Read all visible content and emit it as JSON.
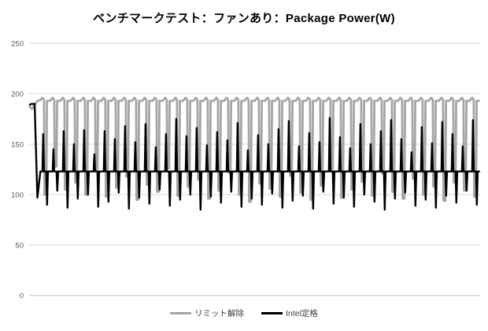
{
  "colors": {
    "background": "#ffffff",
    "gridline": "#d9d9d9",
    "zero_axis_line": "#bfbfbf",
    "tick_label": "#595959",
    "title_text": "#000000",
    "legend_text": "#404040",
    "series_gray": "#a5a5a5",
    "series_black": "#000000"
  },
  "chart_data": {
    "type": "line",
    "title": "ベンチマークテスト：ファンあり：Package Power(W)",
    "xlabel": "",
    "ylabel": "",
    "ylim": [
      0,
      250
    ],
    "yticks": [
      0,
      50,
      100,
      150,
      200,
      250
    ],
    "x_tick_labels": "none",
    "grid": true,
    "legend_position": "bottom-center",
    "units": "W",
    "series": [
      {
        "name": "リミット解除",
        "color": "#a5a5a5",
        "shape": "plateau ~194 W with one sharp dip per cycle",
        "intro_values": [
          188,
          185,
          189,
          193
        ],
        "plateau_high": 194,
        "plateau_peak": 196,
        "plateau_low": 193,
        "dip_values": [
          100,
          128,
          105,
          112,
          100,
          125,
          98,
          107,
          118,
          95,
          110,
          103,
          126,
          99,
          108,
          115,
          96,
          104,
          122,
          100,
          93,
          111,
          106,
          98,
          119,
          102,
          95,
          109,
          125,
          97,
          105,
          113,
          99,
          121,
          103,
          96,
          116,
          100,
          108,
          94,
          112,
          104,
          98
        ]
      },
      {
        "name": "Intel定格",
        "color": "#000000",
        "shape": "starts ~190 W, drops to flat ~123 W baseline with one up-spike and one down-spike per cycle",
        "intro_values": [
          189,
          190,
          190,
          97
        ],
        "baseline": 123,
        "spike_up_values": [
          160,
          145,
          163,
          150,
          164,
          140,
          163,
          155,
          168,
          152,
          170,
          147,
          160,
          175,
          158,
          166,
          149,
          162,
          154,
          171,
          144,
          159,
          150,
          165,
          173,
          148,
          161,
          152,
          176,
          157,
          146,
          170,
          150,
          163,
          174,
          155,
          142,
          167,
          151,
          172,
          160,
          148,
          174
        ],
        "spike_down_values": [
          90,
          104,
          87,
          96,
          100,
          88,
          93,
          102,
          86,
          97,
          91,
          105,
          89,
          95,
          100,
          85,
          98,
          92,
          103,
          88,
          96,
          90,
          101,
          87,
          94,
          99,
          86,
          103,
          91,
          97,
          88,
          100,
          93,
          85,
          96,
          102,
          89,
          95,
          87,
          99,
          92,
          104,
          90
        ]
      }
    ]
  }
}
